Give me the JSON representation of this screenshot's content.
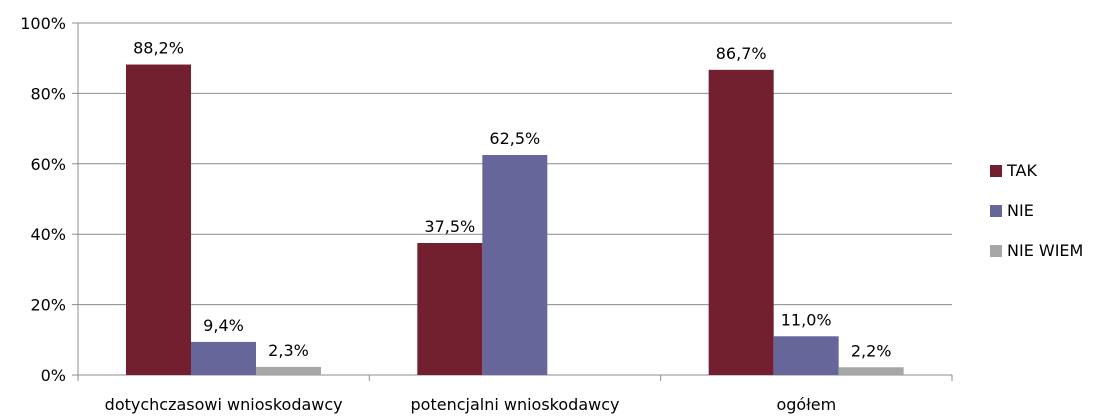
{
  "chart_data": {
    "type": "bar",
    "categories": [
      "dotychczasowi wnioskodawcy",
      "potencjalni wnioskodawcy",
      "ogółem"
    ],
    "series": [
      {
        "name": "TAK",
        "color": "#722030",
        "values": [
          88.2,
          37.5,
          86.7
        ],
        "labels": [
          "88,2%",
          "37,5%",
          "86,7%"
        ]
      },
      {
        "name": "NIE",
        "color": "#67669A",
        "values": [
          9.4,
          62.5,
          11.0
        ],
        "labels": [
          "9,4%",
          "62,5%",
          "11,0%"
        ]
      },
      {
        "name": "NIE WIEM",
        "color": "#A6A6A6",
        "values": [
          2.3,
          null,
          2.2
        ],
        "labels": [
          "2,3%",
          "",
          "2,2%"
        ]
      }
    ],
    "y_ticks": [
      "0%",
      "20%",
      "40%",
      "60%",
      "80%",
      "100%"
    ],
    "ylim": [
      0,
      100
    ],
    "grid": true,
    "legend": "right"
  }
}
